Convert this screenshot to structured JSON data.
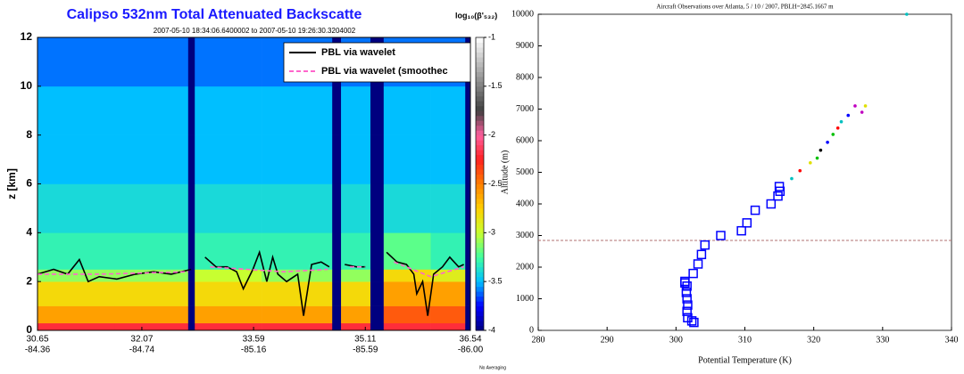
{
  "chart_data": [
    {
      "type": "heatmap",
      "title": "Calipso 532nm Total Attenuated Backscatte",
      "subtitle": "2007-05-10 18:34:06.6400002 to 2007-05-10 19:26:30.3204002",
      "ylabel": "z [km]",
      "xlim": [
        30.65,
        36.54
      ],
      "xticks": [
        30.65,
        32.07,
        33.59,
        35.11,
        36.54
      ],
      "xtick_sublabels": [
        "-84.36",
        "-84.74",
        "-85.16",
        "-85.59",
        "-86.00"
      ],
      "ylim": [
        0,
        12
      ],
      "yticks": [
        0,
        2,
        4,
        6,
        8,
        10,
        12
      ],
      "x_edges": [
        30.65,
        31.7,
        32.7,
        32.79,
        33.7,
        34.66,
        34.78,
        35.18,
        35.36,
        36.0,
        36.47,
        36.54
      ],
      "y_edges": [
        0,
        0.3,
        1,
        2,
        2.5,
        4,
        6,
        8,
        10,
        12
      ],
      "z": [
        [
          -2.2,
          -2.2,
          -4,
          -2.2,
          -2.2,
          -4,
          -2.2,
          -4,
          -2.2,
          -2.2,
          -4
        ],
        [
          -2.6,
          -2.6,
          -4,
          -2.6,
          -2.6,
          -4,
          -2.6,
          -4,
          -2.4,
          -2.4,
          -4
        ],
        [
          -2.8,
          -2.8,
          -4,
          -2.8,
          -2.8,
          -4,
          -2.8,
          -4,
          -2.6,
          -2.6,
          -4
        ],
        [
          -3.1,
          -3.1,
          -4,
          -3.0,
          -3.1,
          -4,
          -3.1,
          -4,
          -2.8,
          -2.9,
          -4
        ],
        [
          -3.3,
          -3.3,
          -4,
          -3.3,
          -3.3,
          -4,
          -3.3,
          -4,
          -3.2,
          -3.3,
          -4
        ],
        [
          -3.4,
          -3.4,
          -4,
          -3.4,
          -3.4,
          -4,
          -3.4,
          -4,
          -3.4,
          -3.4,
          -4
        ],
        [
          -3.5,
          -3.5,
          -4,
          -3.5,
          -3.5,
          -4,
          -3.5,
          -4,
          -3.5,
          -3.5,
          -4
        ],
        [
          -3.5,
          -3.5,
          -4,
          -3.5,
          -3.5,
          -4,
          -3.5,
          -4,
          -3.5,
          -3.5,
          -4
        ],
        [
          -3.6,
          -3.6,
          -4,
          -3.6,
          -3.6,
          -4,
          -3.6,
          -4,
          -3.6,
          -3.6,
          -4
        ]
      ],
      "zlim": [
        -4,
        -1
      ],
      "zticks": [
        -1,
        -1.5,
        -2,
        -2.5,
        -3,
        -3.5,
        -4
      ],
      "colorbar_label": "log₁₀(β'₅₃₂)",
      "colormap": [
        "#00007f",
        "#0000ff",
        "#00bfff",
        "#40ffa0",
        "#c8ff30",
        "#ffd000",
        "#ff8000",
        "#ff2020",
        "#ff60a0",
        "#404040",
        "#808080",
        "#c0c0c0",
        "#ffffff"
      ],
      "legend": "upper right",
      "series": [
        {
          "name": "PBL via wavelet",
          "color": "#000000",
          "x": [
            30.65,
            30.87,
            31.06,
            31.22,
            31.34,
            31.49,
            31.73,
            31.98,
            32.23,
            32.47,
            32.74,
            32.76,
            32.93,
            33.08,
            33.23,
            33.36,
            33.45,
            33.58,
            33.67,
            33.77,
            33.85,
            33.92,
            34.04,
            34.19,
            34.27,
            34.38,
            34.51,
            34.62,
            34.7,
            34.83,
            34.99,
            35.11,
            35.25,
            35.4,
            35.54,
            35.67,
            35.77,
            35.81,
            35.89,
            35.96,
            36.04,
            36.16,
            36.26,
            36.38,
            36.45
          ],
          "values": [
            2.3,
            2.5,
            2.3,
            2.9,
            2.0,
            2.2,
            2.1,
            2.3,
            2.4,
            2.3,
            2.5,
            null,
            3.0,
            2.6,
            2.6,
            2.4,
            1.7,
            2.5,
            3.2,
            2.0,
            3.0,
            2.3,
            2.0,
            2.3,
            0.6,
            2.7,
            2.8,
            2.6,
            null,
            2.7,
            2.6,
            2.6,
            null,
            3.2,
            2.8,
            2.7,
            2.3,
            1.5,
            2.0,
            0.6,
            2.3,
            2.6,
            3.0,
            2.6,
            2.7
          ]
        },
        {
          "name": "PBL via wavelet (smoothec",
          "color": "#ff66cc",
          "dash": "5 3",
          "x": [
            30.65,
            31.5,
            32.7,
            32.76,
            33.0,
            34.0,
            34.6,
            34.7,
            34.9,
            35.1,
            35.25,
            35.5,
            36.0,
            36.45
          ],
          "values": [
            2.3,
            2.3,
            2.4,
            null,
            2.6,
            2.4,
            2.5,
            null,
            2.6,
            2.6,
            null,
            2.8,
            2.2,
            2.6
          ]
        }
      ],
      "footnote": "No Averaging"
    },
    {
      "type": "scatter",
      "title": "Aircraft Observations over Atlanta, 5 / 10 / 2007, PBLH=2845.1667 m",
      "xlabel": "Potential Temperature (K)",
      "ylabel": "Altitude (m)",
      "xlim": [
        280,
        340
      ],
      "xticks": [
        280,
        290,
        300,
        310,
        320,
        330,
        340
      ],
      "ylim": [
        0,
        10000
      ],
      "yticks": [
        0,
        1000,
        2000,
        3000,
        4000,
        5000,
        6000,
        7000,
        8000,
        9000,
        10000
      ],
      "hline": 2845.1667,
      "hline_color": "#b07070",
      "series": [
        {
          "marker": "square",
          "color": "#0000ff",
          "x": [
            301.3,
            301.6,
            301.5,
            301.6,
            301.7,
            301.6,
            301.7,
            302.3,
            302.6,
            301.3,
            302.5,
            303.2,
            303.7,
            304.2,
            306.5,
            309.5,
            310.3,
            311.5,
            313.8,
            314.8,
            315.1,
            315.0
          ],
          "values": [
            1550,
            1400,
            1200,
            1000,
            800,
            600,
            400,
            300,
            250,
            1500,
            1800,
            2100,
            2400,
            2700,
            3000,
            3150,
            3400,
            3800,
            4000,
            4250,
            4400,
            4550
          ]
        },
        {
          "marker": "dot",
          "colors": [
            "#00c0c0",
            "#ff0000",
            "#e0e000",
            "#00c000",
            "#000000",
            "#0000ff",
            "#00c000",
            "#ff0000",
            "#00c0c0",
            "#0000ff",
            "#c000c0",
            "#c000c0",
            "#e0e000",
            "#00c0c0"
          ],
          "x": [
            316.8,
            318,
            319.5,
            320.5,
            321,
            322,
            322.8,
            323.5,
            324,
            325,
            326,
            327,
            327.5,
            333.5
          ],
          "values": [
            4800,
            5050,
            5300,
            5450,
            5700,
            5950,
            6200,
            6400,
            6600,
            6800,
            7100,
            6900,
            7100,
            10000
          ]
        }
      ]
    }
  ]
}
